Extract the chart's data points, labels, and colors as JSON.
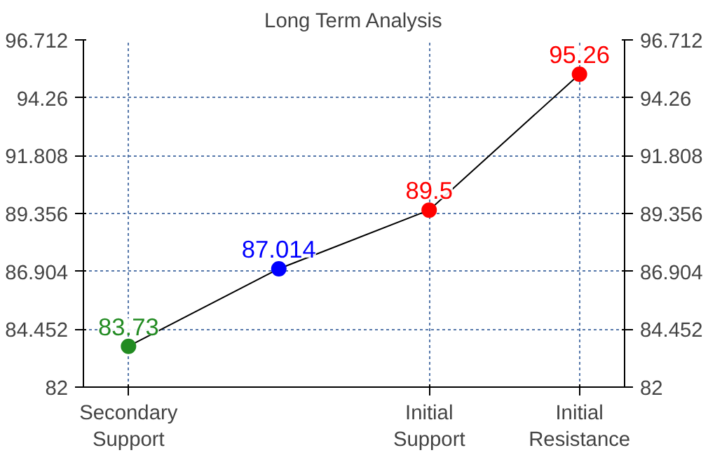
{
  "chart_data": {
    "type": "line",
    "title": "Long Term Analysis",
    "categories": [
      "Secondary Support",
      null,
      "Initial Support",
      "Initial Resistance"
    ],
    "series": [
      {
        "color": "#000000",
        "colors": [
          "#228b22",
          "#0000ff",
          "#ff0000",
          "#ff0000"
        ],
        "values": [
          83.73,
          87.014,
          89.5,
          95.26
        ]
      }
    ],
    "ylim": [
      82,
      96.712
    ],
    "yticks": [
      82,
      84.452,
      86.904,
      89.356,
      91.808,
      94.26,
      96.712
    ],
    "y2lim": [
      82,
      96.712
    ],
    "y2ticks": [
      82,
      84.452,
      86.904,
      89.356,
      91.808,
      94.26,
      96.712
    ],
    "grid": true,
    "marker": "circle",
    "line_style": "solid",
    "data_labels": true
  }
}
